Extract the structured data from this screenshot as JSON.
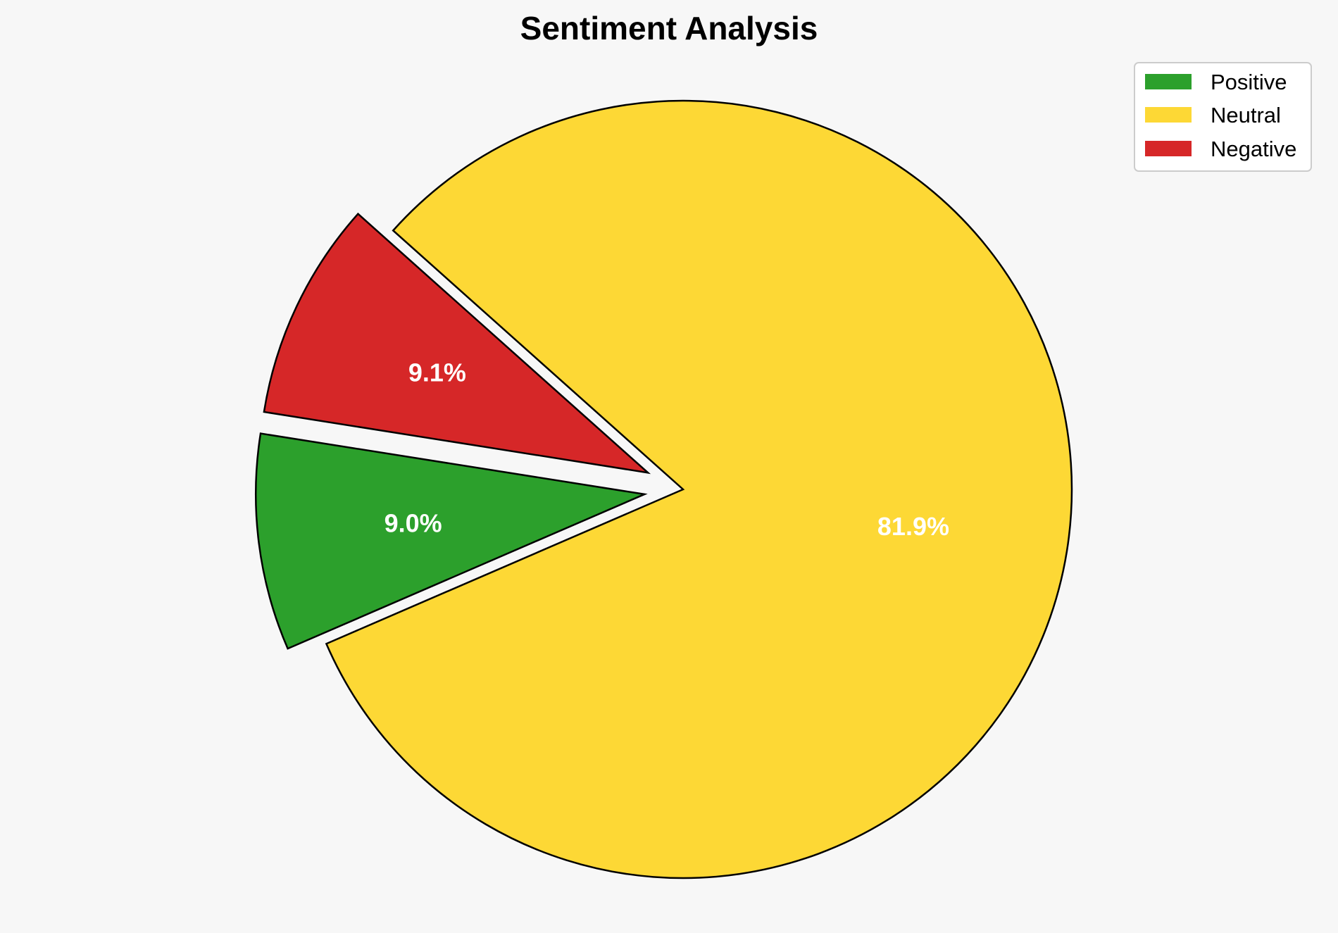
{
  "chart_data": {
    "type": "pie",
    "title": "Sentiment Analysis",
    "categories": [
      "Positive",
      "Neutral",
      "Negative"
    ],
    "values": [
      9.0,
      81.9,
      9.1
    ],
    "value_labels": [
      "9.0%",
      "81.9%",
      "9.1%"
    ],
    "colors": [
      "#2ca02c",
      "#fdd835",
      "#d62728"
    ],
    "exploded": [
      true,
      false,
      true
    ],
    "legend": {
      "placement": "top-right",
      "entries": [
        "Positive",
        "Neutral",
        "Negative"
      ]
    }
  }
}
